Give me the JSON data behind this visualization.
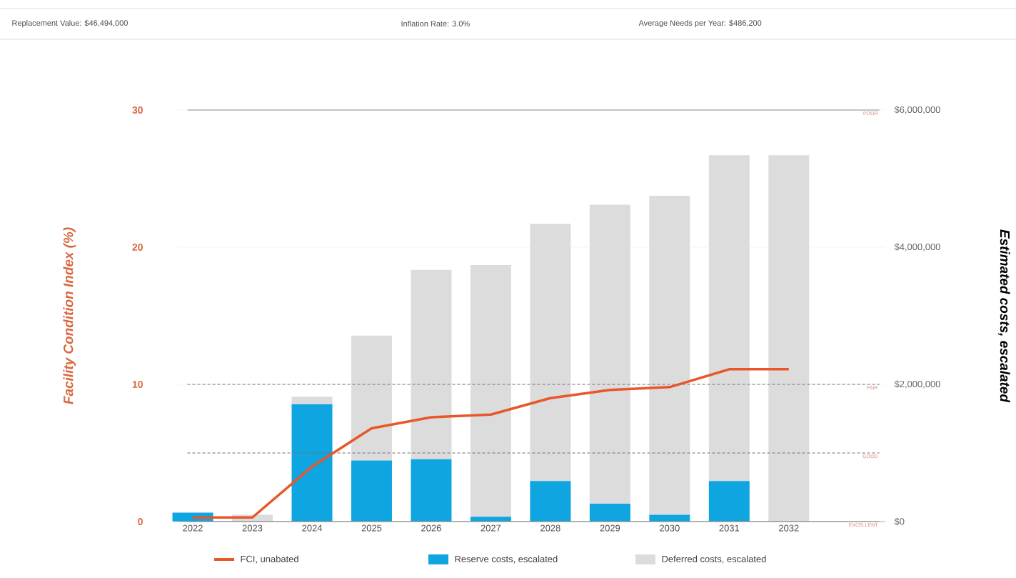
{
  "chart_data": {
    "type": "bar",
    "annotations": [
      "Replacement Value: $46,494,000",
      "Inflation Rate: 3.0%",
      "Average Needs per Year: $486,200"
    ],
    "ylabel": "Facility Condition Index (%)",
    "y2label": "Estimated costs, escalated",
    "categories": [
      "2022",
      "2023",
      "2024",
      "2025",
      "2026",
      "2027",
      "2028",
      "2029",
      "2030",
      "2031",
      "2032"
    ],
    "series": [
      {
        "name": "FCI, unabated",
        "type": "line",
        "color": "#e8572a",
        "values": [
          0.3,
          0.3,
          4.0,
          6.8,
          7.6,
          7.8,
          9.0,
          9.6,
          9.8,
          11.1,
          11.1
        ]
      },
      {
        "name": "Reserve costs, escalated",
        "type": "bar",
        "axis": "y2",
        "color": "#0ea5e0",
        "values": [
          130000,
          0,
          1710000,
          890000,
          910000,
          70000,
          590000,
          260000,
          100000,
          590000,
          0
        ]
      },
      {
        "name": "Deferred costs, escalated",
        "type": "bar",
        "axis": "y2",
        "color": "#dcdcdc",
        "values": [
          0,
          100000,
          110000,
          1820000,
          2760000,
          3670000,
          3750000,
          4360000,
          4650000,
          4750000,
          5340000
        ]
      }
    ],
    "stacked": true,
    "ylim": [
      0,
      30
    ],
    "yticks": [
      0,
      10,
      20,
      30
    ],
    "y2lim": [
      0,
      6000000
    ],
    "y2ticks": [
      {
        "value": 0,
        "label": "$0"
      },
      {
        "value": 2000000,
        "label": "$2,000,000"
      },
      {
        "value": 4000000,
        "label": "$4,000,000"
      },
      {
        "value": 6000000,
        "label": "$6,000,000"
      }
    ],
    "ref_lines": [
      {
        "axis": "y",
        "value": 30,
        "label": "POOR",
        "line_style": "solid"
      },
      {
        "axis": "y",
        "value": 10,
        "label": "FAIR",
        "line_style": "dashed"
      },
      {
        "axis": "y",
        "value": 5,
        "label": "GOOD",
        "line_style": "dashed"
      },
      {
        "axis": "y",
        "value": 0,
        "label": "EXCELLENT",
        "line_style": "solid"
      }
    ],
    "grid": "y",
    "legend": "bottom",
    "marker": "none"
  }
}
